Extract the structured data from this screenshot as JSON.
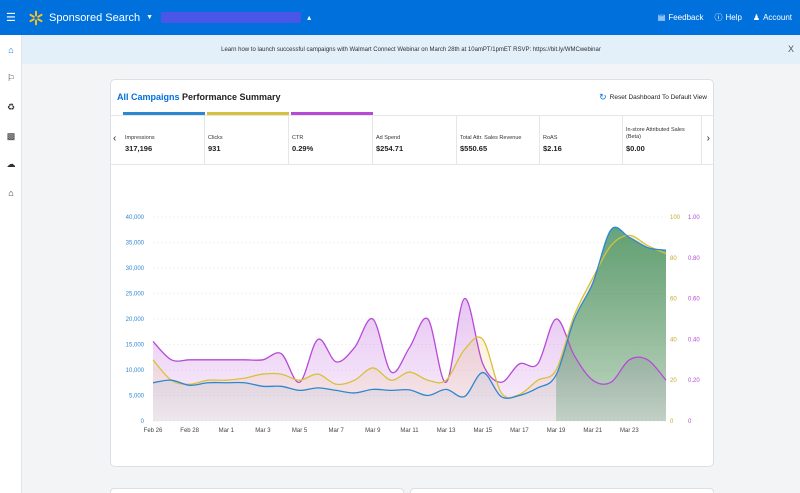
{
  "topbar": {
    "app_name": "Sponsored Search",
    "caret": "▼",
    "caret_up": "▴",
    "links": [
      {
        "icon": "feedback-icon",
        "label": "Feedback"
      },
      {
        "icon": "help-icon",
        "label": "Help"
      },
      {
        "icon": "account-icon",
        "label": "Account"
      }
    ],
    "colors": {
      "bar": "#0071dc",
      "spark": "#ffc220",
      "redaction": "#4a56e8"
    }
  },
  "rail": {
    "icons": [
      "home-icon",
      "campaigns-icon",
      "recycle-icon",
      "reports-icon",
      "upload-icon",
      "store-icon"
    ]
  },
  "banner": {
    "text": "Learn how to launch successful campaigns with Walmart Connect Webinar on March 28th at 10amPT/1pmET RSVP: https://bit.ly/WMCwebinar",
    "close": "X"
  },
  "card": {
    "title_link": "All Campaigns",
    "title_rest": " Performance Summary",
    "reset_label": "Reset Dashboard To Default View",
    "prev_arrow": "‹",
    "next_arrow": "›"
  },
  "metrics": [
    {
      "name": "Impressions",
      "value": "317,196",
      "color": "#2f86d0"
    },
    {
      "name": "Clicks",
      "value": "931",
      "color": "#d8c13a"
    },
    {
      "name": "CTR",
      "value": "0.29%",
      "color": "#b64ad6"
    },
    {
      "name": "Ad Spend",
      "value": "$254.71"
    },
    {
      "name": "Total Attr. Sales Revenue",
      "value": "$550.65"
    },
    {
      "name": "RoAS",
      "value": "$2.16"
    },
    {
      "name": "In-store Attributed Sales (Beta)",
      "value": "$0.00"
    }
  ],
  "chart_data": {
    "type": "area",
    "x": [
      "Feb 26",
      "Feb 27",
      "Feb 28",
      "Feb 29",
      "Mar 1",
      "Mar 2",
      "Mar 3",
      "Mar 4",
      "Mar 5",
      "Mar 6",
      "Mar 7",
      "Mar 8",
      "Mar 9",
      "Mar 10",
      "Mar 11",
      "Mar 12",
      "Mar 13",
      "Mar 14",
      "Mar 15",
      "Mar 16",
      "Mar 17",
      "Mar 18",
      "Mar 19",
      "Mar 20",
      "Mar 21",
      "Mar 22",
      "Mar 23",
      "Mar 24",
      "Mar 25"
    ],
    "x_tick_labels": [
      "Feb 26",
      "Feb 28",
      "Mar 1",
      "Mar 3",
      "Mar 5",
      "Mar 7",
      "Mar 9",
      "Mar 11",
      "Mar 13",
      "Mar 15",
      "Mar 17",
      "Mar 19",
      "Mar 21",
      "Mar 23"
    ],
    "y_left": {
      "min": 0,
      "max": 40000,
      "ticks": [
        "0",
        "5,000",
        "10,000",
        "15,000",
        "20,000",
        "25,000",
        "30,000",
        "35,000",
        "40,000"
      ]
    },
    "y_mid": {
      "min": 0,
      "max": 100,
      "ticks": [
        "0",
        "20",
        "40",
        "60",
        "80",
        "100"
      ]
    },
    "y_right": {
      "min": 0,
      "max": 1,
      "ticks": [
        "0",
        "0.20",
        "0.40",
        "0.60",
        "0.80",
        "1.00"
      ]
    },
    "grid": true,
    "series": [
      {
        "axis": "y_left",
        "color": "#2f86d0",
        "values": [
          7500,
          8000,
          7000,
          7500,
          7500,
          7500,
          6800,
          6800,
          6000,
          6500,
          6000,
          5500,
          6200,
          6000,
          6100,
          5000,
          6200,
          4800,
          9500,
          4800,
          5000,
          6500,
          9000,
          20000,
          27000,
          37500,
          36000,
          34000,
          33500
        ]
      },
      {
        "axis": "y_mid",
        "color": "#d8c13a",
        "values": [
          30,
          20,
          18,
          20,
          20,
          21,
          23,
          23,
          20,
          23,
          18,
          20,
          26,
          20,
          24,
          20,
          20,
          35,
          40,
          14,
          13,
          20,
          25,
          52,
          70,
          86,
          91,
          86,
          82
        ]
      },
      {
        "axis": "y_right",
        "color": "#b64ad6",
        "values": [
          0.39,
          0.3,
          0.3,
          0.3,
          0.3,
          0.3,
          0.3,
          0.33,
          0.19,
          0.4,
          0.29,
          0.36,
          0.5,
          0.24,
          0.36,
          0.5,
          0.19,
          0.6,
          0.28,
          0.19,
          0.28,
          0.28,
          0.5,
          0.32,
          0.2,
          0.19,
          0.3,
          0.3,
          0.2
        ]
      }
    ]
  }
}
